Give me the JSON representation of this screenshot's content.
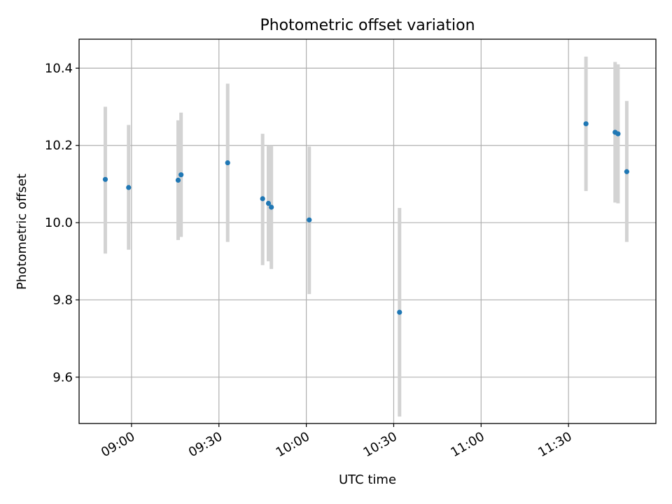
{
  "chart_data": {
    "type": "scatter",
    "title": "Photometric offset variation",
    "xlabel": "UTC time",
    "ylabel": "Photometric offset",
    "xlim": [
      "08:42",
      "12:00"
    ],
    "ylim": [
      9.48,
      10.475
    ],
    "xticks": [
      "09:00",
      "09:30",
      "10:00",
      "10:30",
      "11:00",
      "11:30"
    ],
    "yticks": [
      9.6,
      9.8,
      10.0,
      10.2,
      10.4
    ],
    "ytick_labels": [
      "9.6",
      "9.8",
      "10.0",
      "10.2",
      "10.4"
    ],
    "grid": true,
    "colors": {
      "point": "#1f77b4",
      "errorbar": "#d3d3d3"
    },
    "series": [
      {
        "points": [
          {
            "x": "08:51",
            "y": 10.112,
            "ylo": 9.92,
            "yhi": 10.3
          },
          {
            "x": "08:59",
            "y": 10.091,
            "ylo": 9.93,
            "yhi": 10.253
          },
          {
            "x": "09:16",
            "y": 10.11,
            "ylo": 9.955,
            "yhi": 10.265
          },
          {
            "x": "09:17",
            "y": 10.124,
            "ylo": 9.963,
            "yhi": 10.285
          },
          {
            "x": "09:33",
            "y": 10.155,
            "ylo": 9.95,
            "yhi": 10.36
          },
          {
            "x": "09:45",
            "y": 10.062,
            "ylo": 9.89,
            "yhi": 10.23
          },
          {
            "x": "09:47",
            "y": 10.05,
            "ylo": 9.9,
            "yhi": 10.2
          },
          {
            "x": "09:48",
            "y": 10.04,
            "ylo": 9.88,
            "yhi": 10.2
          },
          {
            "x": "10:01",
            "y": 10.007,
            "ylo": 9.815,
            "yhi": 10.197
          },
          {
            "x": "10:32",
            "y": 9.768,
            "ylo": 9.498,
            "yhi": 10.038
          },
          {
            "x": "11:36",
            "y": 10.256,
            "ylo": 10.082,
            "yhi": 10.43
          },
          {
            "x": "11:46",
            "y": 10.234,
            "ylo": 10.052,
            "yhi": 10.416
          },
          {
            "x": "11:47",
            "y": 10.23,
            "ylo": 10.05,
            "yhi": 10.41
          },
          {
            "x": "11:50",
            "y": 10.132,
            "ylo": 9.95,
            "yhi": 10.315
          }
        ]
      }
    ]
  }
}
